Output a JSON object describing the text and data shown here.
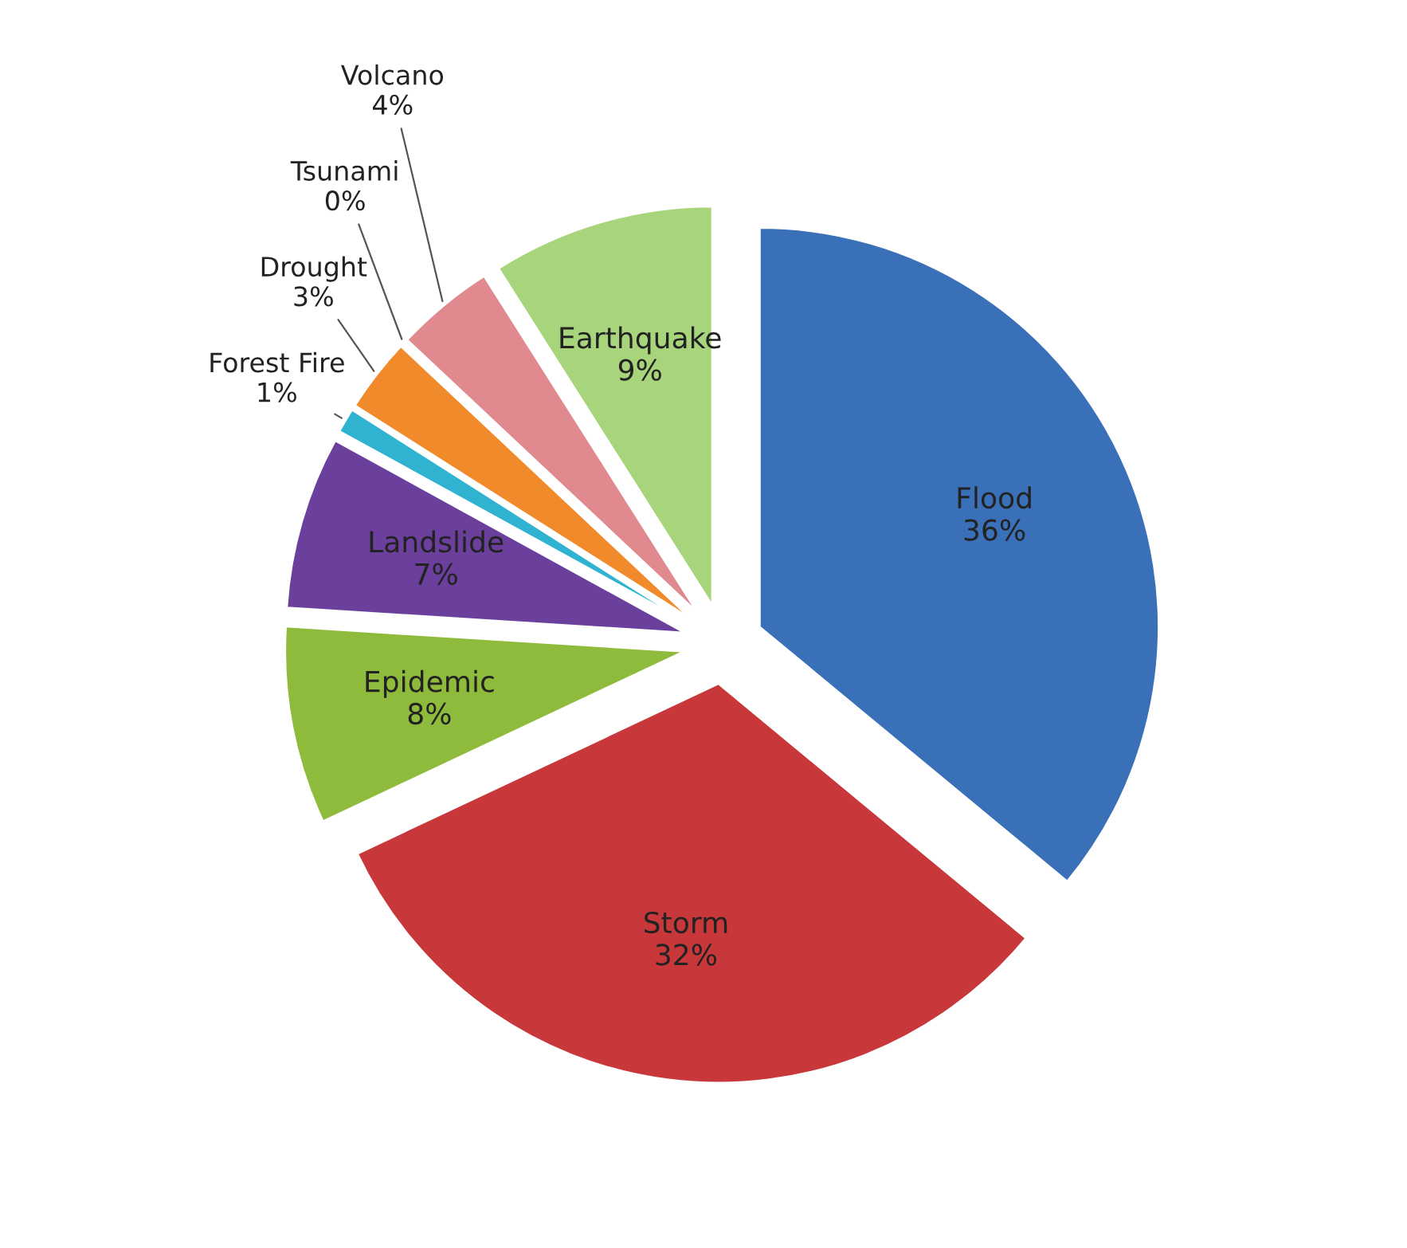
{
  "chart_data": {
    "type": "pie",
    "categories": [
      "Flood",
      "Storm",
      "Epidemic",
      "Landslide",
      "Forest Fire",
      "Drought",
      "Tsunami",
      "Volcano",
      "Earthquake"
    ],
    "values": [
      36,
      32,
      8,
      7,
      1,
      3,
      0,
      4,
      9
    ],
    "value_labels": [
      "36%",
      "32%",
      "8%",
      "7%",
      "1%",
      "3%",
      "0%",
      "4%",
      "9%"
    ],
    "colors": [
      "#3a70b8",
      "#c8373a",
      "#8fbb3c",
      "#6b3f9c",
      "#2fb3d0",
      "#f08a2a",
      "#4a6fb0",
      "#e08a90",
      "#a8d57c"
    ],
    "legend": false
  }
}
